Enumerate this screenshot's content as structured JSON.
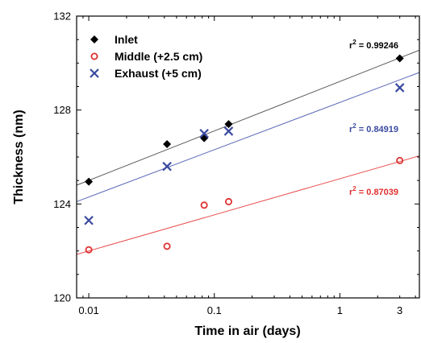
{
  "chart_data": {
    "type": "scatter",
    "xlabel": "Time in air (days)",
    "ylabel": "Thickness (nm)",
    "xscale": "log",
    "xlim": [
      0.008,
      4.3
    ],
    "ylim": [
      120,
      132
    ],
    "xticks": [
      0.01,
      0.1,
      1,
      3
    ],
    "xtick_labels": [
      "0.01",
      "0.1",
      "1",
      "3"
    ],
    "yticks": [
      120,
      124,
      128,
      132
    ],
    "ytick_labels": [
      "120",
      "124",
      "128",
      "132"
    ],
    "grid": false,
    "legend_position": "top-left",
    "series": [
      {
        "name": "Inlet",
        "marker": "diamond",
        "color": "#000000",
        "fit_color": "#555555",
        "points": [
          {
            "x": 0.01,
            "y": 124.95
          },
          {
            "x": 0.042,
            "y": 126.55
          },
          {
            "x": 0.083,
            "y": 126.8
          },
          {
            "x": 0.13,
            "y": 127.4
          },
          {
            "x": 3,
            "y": 130.2
          }
        ],
        "fit": [
          {
            "x": 0.008,
            "y": 124.8
          },
          {
            "x": 4.3,
            "y": 130.55
          }
        ],
        "r2_prefix": "r",
        "r2_exp": "2",
        "r2_value": " = 0.99246"
      },
      {
        "name": "Middle (+2.5 cm)",
        "marker": "open-circle",
        "color": "#e03030",
        "fit_color": "#e85050",
        "points": [
          {
            "x": 0.01,
            "y": 122.05
          },
          {
            "x": 0.042,
            "y": 122.2
          },
          {
            "x": 0.083,
            "y": 123.95
          },
          {
            "x": 0.13,
            "y": 124.1
          },
          {
            "x": 3,
            "y": 125.85
          }
        ],
        "fit": [
          {
            "x": 0.008,
            "y": 121.85
          },
          {
            "x": 4.3,
            "y": 126.05
          }
        ],
        "r2_prefix": "r",
        "r2_exp": "2",
        "r2_value": " = 0.87039"
      },
      {
        "name": "Exhaust (+5 cm)",
        "marker": "x",
        "color": "#3a4aa0",
        "fit_color": "#5a66b8",
        "points": [
          {
            "x": 0.01,
            "y": 123.3
          },
          {
            "x": 0.042,
            "y": 125.6
          },
          {
            "x": 0.083,
            "y": 127.0
          },
          {
            "x": 0.13,
            "y": 127.1
          },
          {
            "x": 3,
            "y": 128.95
          }
        ],
        "fit": [
          {
            "x": 0.008,
            "y": 124.1
          },
          {
            "x": 4.3,
            "y": 129.6
          }
        ],
        "r2_prefix": "r",
        "r2_exp": "2",
        "r2_value": " = 0.84919"
      }
    ]
  }
}
